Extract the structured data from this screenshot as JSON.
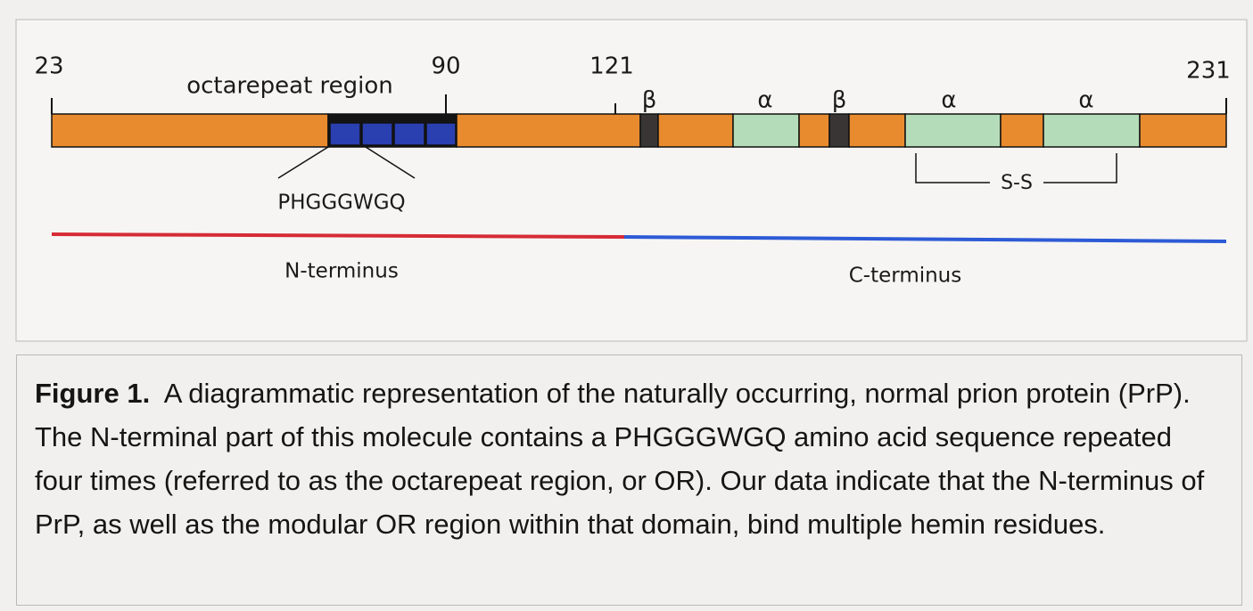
{
  "diagram": {
    "ticks": [
      "23",
      "90",
      "121",
      "231"
    ],
    "region_label": "octarepeat region",
    "structures": [
      "β",
      "α",
      "β",
      "α",
      "α"
    ],
    "repeat_sequence": "PHGGGWGQ",
    "disulfide": "S-S",
    "n_terminus": "N-terminus",
    "c_terminus": "C-terminus"
  },
  "caption": {
    "label": "Figure 1.",
    "text": "A diagrammatic representation of the naturally occurring, normal prion protein (PrP). The N-terminal part of this molecule contains a PHGGGWGQ amino acid sequence repeated four times (referred to as the octarepeat region, or OR).  Our data indicate that the N-terminus of PrP, as well as the modular OR region within that domain, bind multiple hemin residues."
  }
}
